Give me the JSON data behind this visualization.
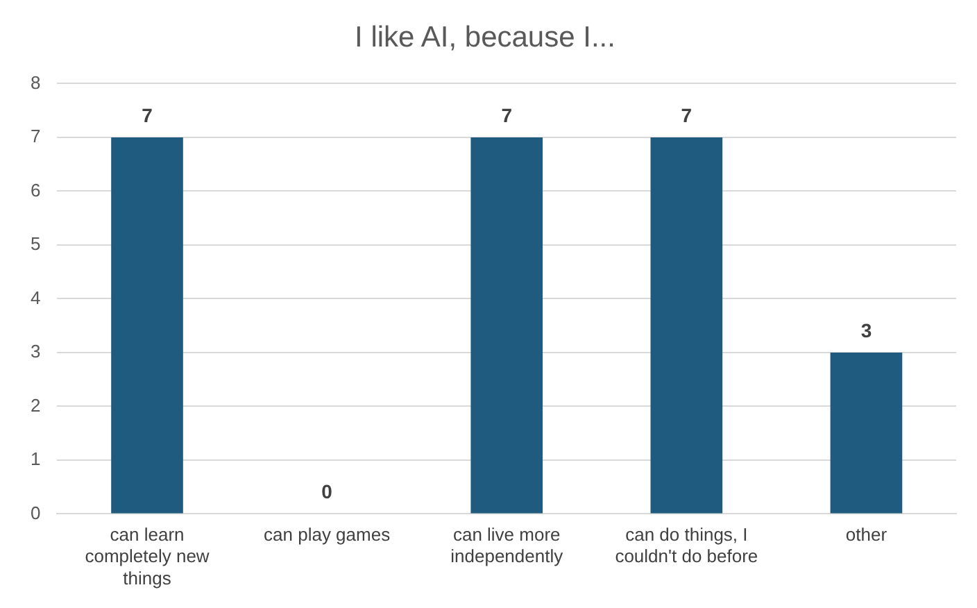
{
  "chart_data": {
    "type": "bar",
    "title": "I like AI, because I...",
    "categories": [
      "can learn completely new things",
      "can play games",
      "can live more independently",
      "can do things, I couldn't do before",
      "other"
    ],
    "values": [
      7,
      0,
      7,
      7,
      3
    ],
    "color": "#1f5b7e",
    "ylim": [
      0,
      8
    ],
    "yticks": [
      0,
      1,
      2,
      3,
      4,
      5,
      6,
      7,
      8
    ],
    "grid": "y",
    "data_labels": true
  }
}
